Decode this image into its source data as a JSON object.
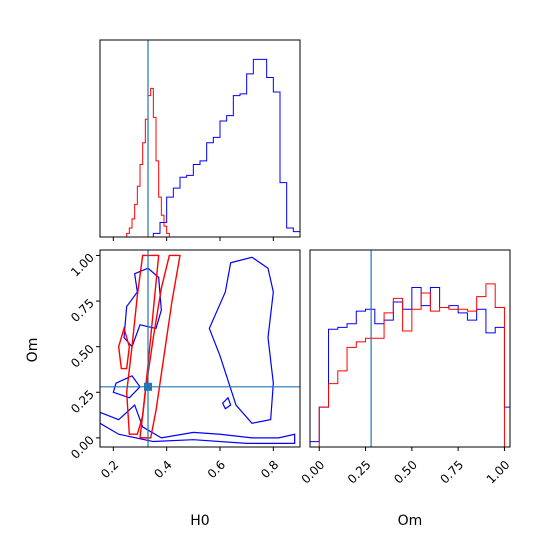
{
  "chart_data": {
    "type": "corner",
    "parameters": [
      "H0",
      "Om"
    ],
    "axis_labels": {
      "x_bottom_left": "H0",
      "x_bottom_right": "Om",
      "y_left": "Om"
    },
    "h0_range": [
      0.15,
      0.9
    ],
    "om_range": [
      -0.05,
      1.03
    ],
    "h0_ticks": [
      0.2,
      0.4,
      0.6,
      0.8
    ],
    "om_ticks": [
      0.0,
      0.25,
      0.5,
      0.75,
      1.0
    ],
    "h0_tick_labels": [
      "0.2",
      "0.4",
      "0.6",
      "0.8"
    ],
    "om_tick_labels": [
      "0.00",
      "0.25",
      "0.50",
      "0.75",
      "1.00"
    ],
    "truth": {
      "H0": 0.33,
      "Om": 0.28
    },
    "colors": {
      "series_a": "#ff0000",
      "series_b": "#0000ff",
      "truth": "#1f77b4"
    },
    "histograms": {
      "H0": {
        "blue": {
          "bins": [
            0.15,
            0.175,
            0.2,
            0.225,
            0.25,
            0.275,
            0.3,
            0.325,
            0.35,
            0.375,
            0.4,
            0.425,
            0.45,
            0.475,
            0.5,
            0.525,
            0.55,
            0.575,
            0.6,
            0.625,
            0.65,
            0.675,
            0.7,
            0.725,
            0.75,
            0.775,
            0.8,
            0.825,
            0.85,
            0.875,
            0.9
          ],
          "heights": [
            0.0,
            0.0,
            0.0,
            0.0,
            0.0,
            0.0,
            0.0,
            0.0,
            0.02,
            0.08,
            0.22,
            0.27,
            0.33,
            0.34,
            0.4,
            0.42,
            0.52,
            0.55,
            0.64,
            0.67,
            0.78,
            0.79,
            0.9,
            0.98,
            0.98,
            0.88,
            0.8,
            0.3,
            0.05,
            0.03
          ]
        },
        "red": {
          "bins": [
            0.25,
            0.26,
            0.27,
            0.28,
            0.29,
            0.3,
            0.31,
            0.32,
            0.33,
            0.34,
            0.35,
            0.36,
            0.37,
            0.38,
            0.39,
            0.4,
            0.41
          ],
          "heights": [
            0.02,
            0.05,
            0.1,
            0.18,
            0.28,
            0.4,
            0.52,
            0.65,
            0.78,
            0.82,
            0.66,
            0.42,
            0.22,
            0.12,
            0.06,
            0.02
          ]
        }
      },
      "Om": {
        "blue": {
          "bins": [
            -0.05,
            0.0,
            0.05,
            0.1,
            0.15,
            0.2,
            0.25,
            0.3,
            0.35,
            0.4,
            0.45,
            0.5,
            0.55,
            0.6,
            0.65,
            0.7,
            0.75,
            0.8,
            0.85,
            0.9,
            0.95,
            1.0,
            1.03
          ],
          "heights": [
            0.03,
            0.22,
            0.65,
            0.66,
            0.68,
            0.75,
            0.76,
            0.68,
            0.7,
            0.8,
            0.76,
            0.88,
            0.78,
            0.88,
            0.77,
            0.78,
            0.74,
            0.7,
            0.76,
            0.63,
            0.66,
            0.22
          ]
        },
        "red": {
          "bins": [
            -0.05,
            0.0,
            0.05,
            0.1,
            0.15,
            0.2,
            0.25,
            0.3,
            0.35,
            0.4,
            0.45,
            0.5,
            0.55,
            0.6,
            0.65,
            0.7,
            0.75,
            0.8,
            0.85,
            0.9,
            0.95,
            1.0,
            1.03
          ],
          "heights": [
            0.0,
            0.22,
            0.35,
            0.42,
            0.55,
            0.58,
            0.6,
            0.6,
            0.74,
            0.82,
            0.64,
            0.76,
            0.85,
            0.75,
            0.77,
            0.76,
            0.76,
            0.75,
            0.83,
            0.9,
            0.77,
            0.0
          ]
        }
      }
    },
    "contours_2d": {
      "red": [
        [
          [
            0.26,
            0.02
          ],
          [
            0.25,
            0.25
          ],
          [
            0.27,
            0.5
          ],
          [
            0.29,
            0.78
          ],
          [
            0.31,
            1.0
          ],
          [
            0.37,
            1.0
          ],
          [
            0.35,
            0.7
          ],
          [
            0.33,
            0.4
          ],
          [
            0.31,
            0.12
          ],
          [
            0.29,
            0.02
          ]
        ],
        [
          [
            0.3,
            0.0
          ],
          [
            0.32,
            0.25
          ],
          [
            0.35,
            0.55
          ],
          [
            0.38,
            0.82
          ],
          [
            0.41,
            1.0
          ],
          [
            0.45,
            1.0
          ],
          [
            0.42,
            0.75
          ],
          [
            0.39,
            0.45
          ],
          [
            0.36,
            0.15
          ],
          [
            0.34,
            0.0
          ]
        ],
        [
          [
            0.23,
            0.38
          ],
          [
            0.22,
            0.5
          ],
          [
            0.24,
            0.6
          ],
          [
            0.26,
            0.5
          ],
          [
            0.25,
            0.38
          ]
        ]
      ],
      "blue": [
        [
          [
            0.15,
            0.14
          ],
          [
            0.22,
            0.1
          ],
          [
            0.28,
            0.18
          ],
          [
            0.31,
            0.06
          ],
          [
            0.38,
            0.0
          ],
          [
            0.5,
            0.03
          ],
          [
            0.6,
            0.02
          ],
          [
            0.72,
            0.0
          ],
          [
            0.82,
            0.0
          ],
          [
            0.88,
            0.02
          ],
          [
            0.88,
            -0.03
          ],
          [
            0.7,
            -0.03
          ],
          [
            0.5,
            -0.01
          ],
          [
            0.35,
            -0.02
          ],
          [
            0.22,
            0.02
          ],
          [
            0.15,
            0.08
          ]
        ],
        [
          [
            0.28,
            0.9
          ],
          [
            0.33,
            0.93
          ],
          [
            0.37,
            0.88
          ],
          [
            0.38,
            0.7
          ],
          [
            0.36,
            0.6
          ],
          [
            0.3,
            0.62
          ],
          [
            0.27,
            0.5
          ],
          [
            0.24,
            0.55
          ],
          [
            0.25,
            0.72
          ],
          [
            0.29,
            0.8
          ]
        ],
        [
          [
            0.64,
            0.96
          ],
          [
            0.72,
            0.99
          ],
          [
            0.78,
            0.93
          ],
          [
            0.8,
            0.8
          ],
          [
            0.78,
            0.55
          ],
          [
            0.8,
            0.3
          ],
          [
            0.79,
            0.1
          ],
          [
            0.72,
            0.08
          ],
          [
            0.66,
            0.18
          ],
          [
            0.6,
            0.45
          ],
          [
            0.56,
            0.6
          ],
          [
            0.62,
            0.8
          ]
        ],
        [
          [
            0.21,
            0.3
          ],
          [
            0.27,
            0.34
          ],
          [
            0.3,
            0.28
          ],
          [
            0.26,
            0.22
          ],
          [
            0.2,
            0.25
          ]
        ],
        [
          [
            0.62,
            0.16
          ],
          [
            0.64,
            0.18
          ],
          [
            0.63,
            0.22
          ],
          [
            0.61,
            0.19
          ]
        ]
      ]
    }
  }
}
